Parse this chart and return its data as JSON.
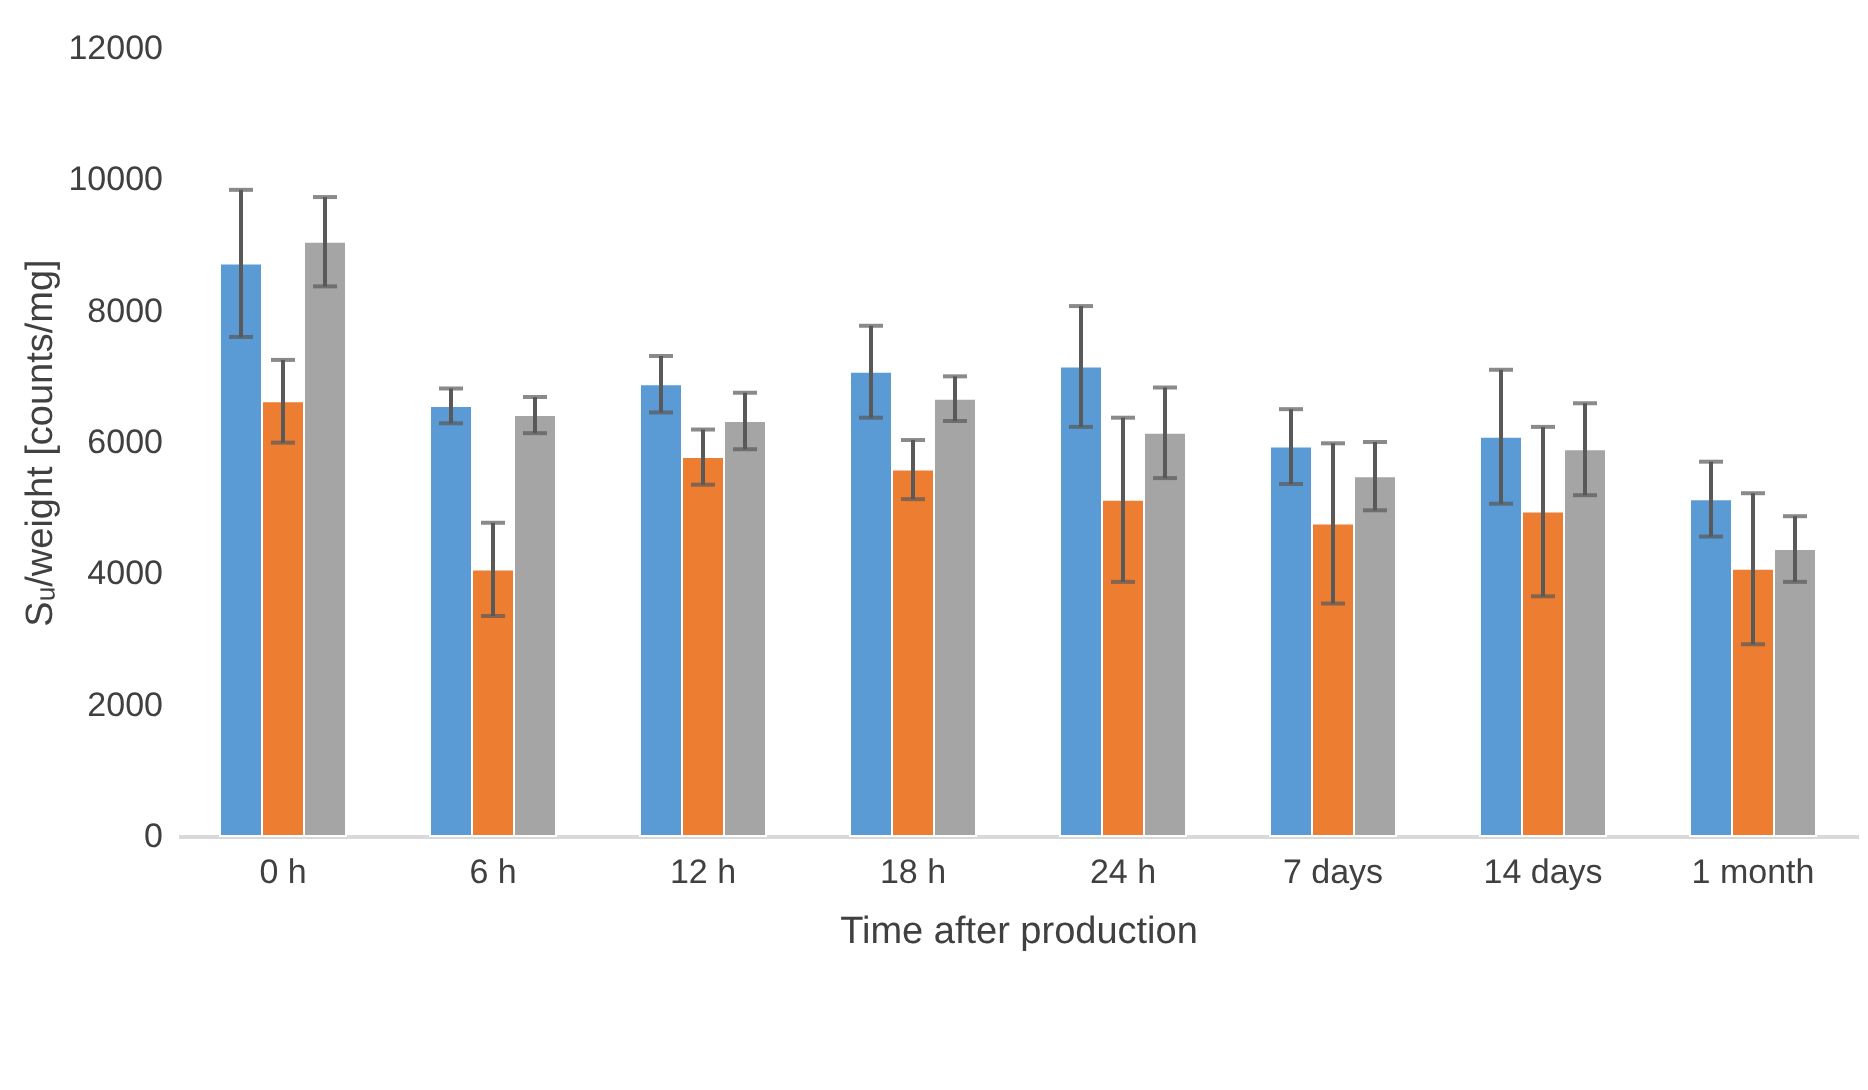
{
  "chart_data": {
    "type": "bar",
    "xlabel": "Time after production",
    "ylabel": "Sᵤ/weight [counts/mg]",
    "categories": [
      "0 h",
      "6 h",
      "12 h",
      "18 h",
      "24 h",
      "7 days",
      "14 days",
      "1 month"
    ],
    "series": [
      {
        "color": "#5b9bd5",
        "values": [
          8720,
          6550,
          6880,
          7070,
          7150,
          5930,
          6080,
          5130
        ],
        "errors": [
          1120,
          265,
          430,
          700,
          920,
          570,
          1020,
          570
        ]
      },
      {
        "color": "#ed7d31",
        "values": [
          6620,
          4060,
          5770,
          5580,
          5120,
          4760,
          4940,
          4070
        ],
        "errors": [
          630,
          710,
          420,
          450,
          1250,
          1220,
          1290,
          1150
        ]
      },
      {
        "color": "#a5a5a5",
        "values": [
          9050,
          6410,
          6320,
          6660,
          6140,
          5480,
          5890,
          4370
        ],
        "errors": [
          680,
          275,
          430,
          340,
          690,
          520,
          700,
          500
        ]
      }
    ],
    "ylim": [
      0,
      12000
    ],
    "yticks": [
      0,
      2000,
      4000,
      6000,
      8000,
      10000,
      12000
    ],
    "grid": false,
    "legend": false
  }
}
